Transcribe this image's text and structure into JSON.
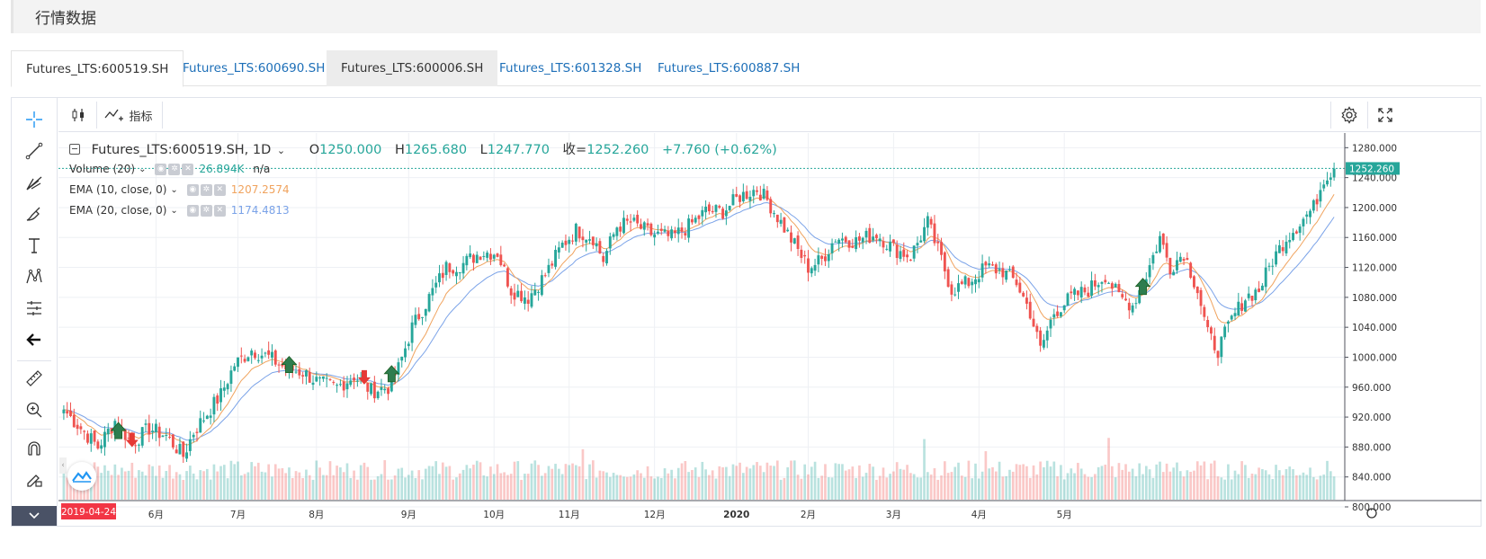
{
  "page": {
    "title": "行情数据"
  },
  "tabs": [
    {
      "label": "Futures_LTS:600519.SH",
      "state": "active"
    },
    {
      "label": "Futures_LTS:600690.SH",
      "state": "normal"
    },
    {
      "label": "Futures_LTS:600006.SH",
      "state": "hover"
    },
    {
      "label": "Futures_LTS:601328.SH",
      "state": "normal"
    },
    {
      "label": "Futures_LTS:600887.SH",
      "state": "normal"
    }
  ],
  "toolbar": {
    "indicators_label": "指标"
  },
  "legend": {
    "symbol": "Futures_LTS:600519.SH, 1D",
    "o_label": "O",
    "o_value": "1250.000",
    "h_label": "H",
    "h_value": "1265.680",
    "l_label": "L",
    "l_value": "1247.770",
    "c_label": "收=",
    "c_value": "1252.260",
    "change": "+7.760 (+0.62%)"
  },
  "indicators": [
    {
      "name": "Volume (20)",
      "value": "26.894K",
      "extra": "n/a",
      "color": "#26a69a"
    },
    {
      "name": "EMA (10, close, 0)",
      "value": "1207.2574",
      "extra": "",
      "color": "#f0a35e"
    },
    {
      "name": "EMA (20, close, 0)",
      "value": "1174.4813",
      "extra": "",
      "color": "#7ba3e8"
    }
  ],
  "colors": {
    "up": "#26a69a",
    "down": "#ef5350",
    "ema10": "#f0a35e",
    "ema20": "#7ba3e8",
    "grid": "#eef0f4"
  },
  "chart_data": {
    "type": "candlestick",
    "y_ticks": [
      "1280.000",
      "1240.000",
      "1200.000",
      "1160.000",
      "1120.000",
      "1080.000",
      "1040.000",
      "1000.000",
      "960.000",
      "920.000",
      "880.000",
      "840.000",
      "800.000"
    ],
    "ylim": [
      800,
      1290
    ],
    "last_price_label": "1252.260",
    "last_price": 1252.26,
    "x_labels": [
      "6月",
      "7月",
      "8月",
      "9月",
      "10月",
      "11月",
      "12月",
      "2020",
      "2月",
      "3月",
      "4月",
      "5月"
    ],
    "start_date_label": "2019-04-24",
    "close_anchors": [
      [
        0,
        930
      ],
      [
        5,
        905
      ],
      [
        10,
        880
      ],
      [
        15,
        915
      ],
      [
        20,
        885
      ],
      [
        25,
        905
      ],
      [
        30,
        895
      ],
      [
        35,
        868
      ],
      [
        38,
        900
      ],
      [
        42,
        925
      ],
      [
        46,
        950
      ],
      [
        50,
        990
      ],
      [
        55,
        1010
      ],
      [
        60,
        1000
      ],
      [
        65,
        985
      ],
      [
        70,
        980
      ],
      [
        75,
        965
      ],
      [
        80,
        960
      ],
      [
        85,
        975
      ],
      [
        90,
        955
      ],
      [
        95,
        960
      ],
      [
        98,
        985
      ],
      [
        102,
        1040
      ],
      [
        107,
        1080
      ],
      [
        112,
        1120
      ],
      [
        117,
        1125
      ],
      [
        122,
        1140
      ],
      [
        127,
        1140
      ],
      [
        131,
        1090
      ],
      [
        136,
        1080
      ],
      [
        141,
        1110
      ],
      [
        146,
        1150
      ],
      [
        150,
        1170
      ],
      [
        155,
        1160
      ],
      [
        158,
        1130
      ],
      [
        162,
        1175
      ],
      [
        166,
        1180
      ],
      [
        172,
        1165
      ],
      [
        178,
        1160
      ],
      [
        183,
        1175
      ],
      [
        188,
        1195
      ],
      [
        193,
        1195
      ],
      [
        198,
        1215
      ],
      [
        203,
        1225
      ],
      [
        206,
        1210
      ],
      [
        210,
        1180
      ],
      [
        214,
        1150
      ],
      [
        218,
        1120
      ],
      [
        222,
        1130
      ],
      [
        226,
        1160
      ],
      [
        232,
        1155
      ],
      [
        238,
        1165
      ],
      [
        243,
        1145
      ],
      [
        248,
        1135
      ],
      [
        253,
        1180
      ],
      [
        257,
        1130
      ],
      [
        260,
        1090
      ],
      [
        265,
        1100
      ],
      [
        270,
        1120
      ],
      [
        275,
        1115
      ],
      [
        279,
        1100
      ],
      [
        283,
        1060
      ],
      [
        286,
        1010
      ],
      [
        290,
        1060
      ],
      [
        295,
        1080
      ],
      [
        300,
        1090
      ],
      [
        305,
        1110
      ],
      [
        309,
        1080
      ],
      [
        313,
        1070
      ],
      [
        317,
        1110
      ],
      [
        321,
        1160
      ],
      [
        324,
        1120
      ],
      [
        328,
        1140
      ],
      [
        332,
        1090
      ],
      [
        335,
        1030
      ],
      [
        338,
        1010
      ],
      [
        342,
        1050
      ],
      [
        346,
        1080
      ],
      [
        350,
        1090
      ],
      [
        354,
        1130
      ],
      [
        358,
        1160
      ],
      [
        362,
        1180
      ],
      [
        366,
        1200
      ],
      [
        369,
        1240
      ],
      [
        372,
        1252
      ]
    ],
    "volume_spikes": [
      [
        85,
        1.3
      ],
      [
        152,
        1.6
      ],
      [
        192,
        1.5
      ],
      [
        235,
        1.2
      ],
      [
        252,
        2.6
      ],
      [
        270,
        2.2
      ],
      [
        306,
        1.8
      ],
      [
        326,
        1.5
      ]
    ],
    "volume_ylim": [
      0,
      100
    ],
    "signals": [
      {
        "i": 16,
        "dir": "up"
      },
      {
        "i": 20,
        "dir": "down"
      },
      {
        "i": 66,
        "dir": "up"
      },
      {
        "i": 88,
        "dir": "down"
      },
      {
        "i": 96,
        "dir": "up"
      },
      {
        "i": 316,
        "dir": "up"
      }
    ]
  }
}
